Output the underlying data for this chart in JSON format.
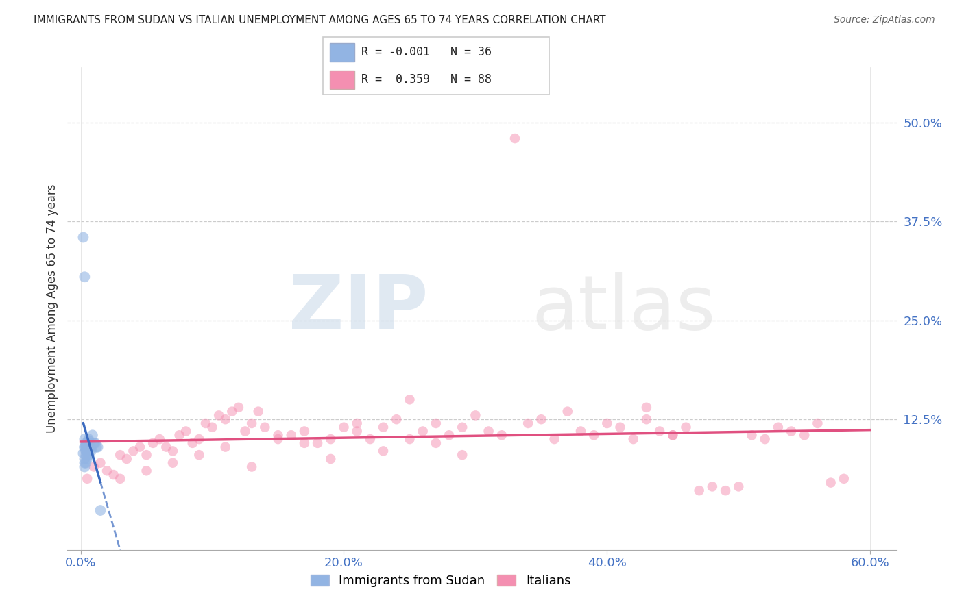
{
  "title": "IMMIGRANTS FROM SUDAN VS ITALIAN UNEMPLOYMENT AMONG AGES 65 TO 74 YEARS CORRELATION CHART",
  "source": "Source: ZipAtlas.com",
  "ylabel_label": "Unemployment Among Ages 65 to 74 years",
  "xlim": [
    0.0,
    60.0
  ],
  "ylim": [
    -4.0,
    57.0
  ],
  "legend_r_blue": "-0.001",
  "legend_n_blue": "36",
  "legend_r_pink": "0.359",
  "legend_n_pink": "88",
  "blue_color": "#92b4e3",
  "pink_color": "#f48fb1",
  "blue_line_color": "#3a6abf",
  "pink_line_color": "#e05080",
  "watermark_zip": "ZIP",
  "watermark_atlas": "atlas",
  "blue_scatter_x": [
    0.3,
    0.5,
    0.4,
    0.6,
    0.7,
    0.8,
    1.0,
    1.2,
    0.9,
    0.3,
    0.4,
    0.6,
    0.7,
    0.5,
    0.3,
    0.4,
    0.5,
    0.6,
    0.3,
    0.4,
    0.8,
    1.1,
    1.3,
    0.2,
    0.3,
    0.5,
    0.4,
    0.6,
    0.3,
    1.5,
    0.4,
    0.5,
    0.3,
    0.4,
    0.6,
    0.2
  ],
  "blue_scatter_y": [
    9.0,
    9.5,
    8.5,
    10.0,
    9.2,
    8.8,
    9.5,
    9.0,
    10.5,
    7.5,
    8.0,
    9.8,
    9.0,
    8.5,
    6.5,
    7.0,
    9.5,
    8.0,
    10.0,
    9.0,
    8.5,
    9.5,
    9.0,
    35.5,
    30.5,
    8.5,
    9.2,
    8.8,
    9.0,
    1.0,
    8.5,
    7.5,
    7.0,
    9.5,
    8.0,
    8.2
  ],
  "pink_scatter_x": [
    0.5,
    1.0,
    1.5,
    2.0,
    2.5,
    3.0,
    3.5,
    4.0,
    4.5,
    5.0,
    5.5,
    6.0,
    6.5,
    7.0,
    7.5,
    8.0,
    8.5,
    9.0,
    9.5,
    10.0,
    10.5,
    11.0,
    11.5,
    12.0,
    12.5,
    13.0,
    13.5,
    14.0,
    15.0,
    16.0,
    17.0,
    18.0,
    19.0,
    20.0,
    21.0,
    22.0,
    23.0,
    24.0,
    25.0,
    26.0,
    27.0,
    28.0,
    29.0,
    30.0,
    31.0,
    32.0,
    33.0,
    34.0,
    35.0,
    36.0,
    37.0,
    38.0,
    39.0,
    40.0,
    41.0,
    42.0,
    43.0,
    44.0,
    45.0,
    46.0,
    47.0,
    48.0,
    49.0,
    50.0,
    51.0,
    52.0,
    53.0,
    54.0,
    55.0,
    56.0,
    57.0,
    58.0,
    3.0,
    5.0,
    7.0,
    9.0,
    11.0,
    13.0,
    15.0,
    17.0,
    19.0,
    21.0,
    23.0,
    25.0,
    27.0,
    29.0,
    43.0,
    45.0
  ],
  "pink_scatter_y": [
    5.0,
    6.5,
    7.0,
    6.0,
    5.5,
    8.0,
    7.5,
    8.5,
    9.0,
    8.0,
    9.5,
    10.0,
    9.0,
    8.5,
    10.5,
    11.0,
    9.5,
    10.0,
    12.0,
    11.5,
    13.0,
    12.5,
    13.5,
    14.0,
    11.0,
    12.0,
    13.5,
    11.5,
    10.0,
    10.5,
    11.0,
    9.5,
    10.0,
    11.5,
    12.0,
    10.0,
    11.5,
    12.5,
    15.0,
    11.0,
    12.0,
    10.5,
    11.5,
    13.0,
    11.0,
    10.5,
    48.0,
    12.0,
    12.5,
    10.0,
    13.5,
    11.0,
    10.5,
    12.0,
    11.5,
    10.0,
    12.5,
    11.0,
    10.5,
    11.5,
    3.5,
    4.0,
    3.5,
    4.0,
    10.5,
    10.0,
    11.5,
    11.0,
    10.5,
    12.0,
    4.5,
    5.0,
    5.0,
    6.0,
    7.0,
    8.0,
    9.0,
    6.5,
    10.5,
    9.5,
    7.5,
    11.0,
    8.5,
    10.0,
    9.5,
    8.0,
    14.0,
    10.5
  ]
}
